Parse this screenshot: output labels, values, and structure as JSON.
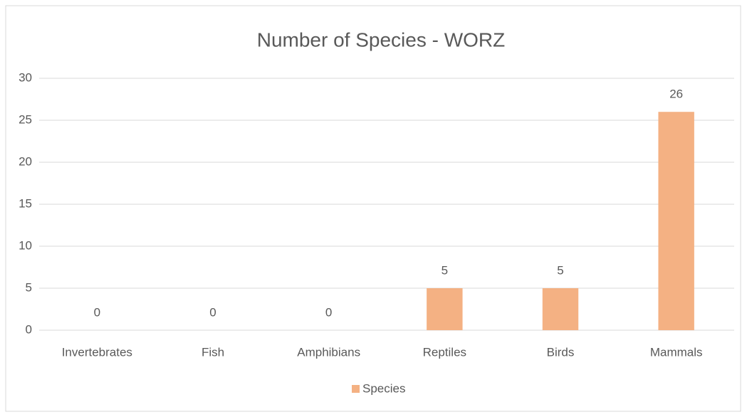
{
  "chart_data": {
    "type": "bar",
    "title": "Number of Species - WORZ",
    "categories": [
      "Invertebrates",
      "Fish",
      "Amphibians",
      "Reptiles",
      "Birds",
      "Mammals"
    ],
    "series": [
      {
        "name": "Species",
        "color": "#f4b183",
        "values": [
          0,
          0,
          0,
          5,
          5,
          26
        ]
      }
    ],
    "ylim": [
      0,
      30
    ],
    "yticks": [
      0,
      5,
      10,
      15,
      20,
      25,
      30
    ],
    "grid": true,
    "legend": "bottom"
  }
}
